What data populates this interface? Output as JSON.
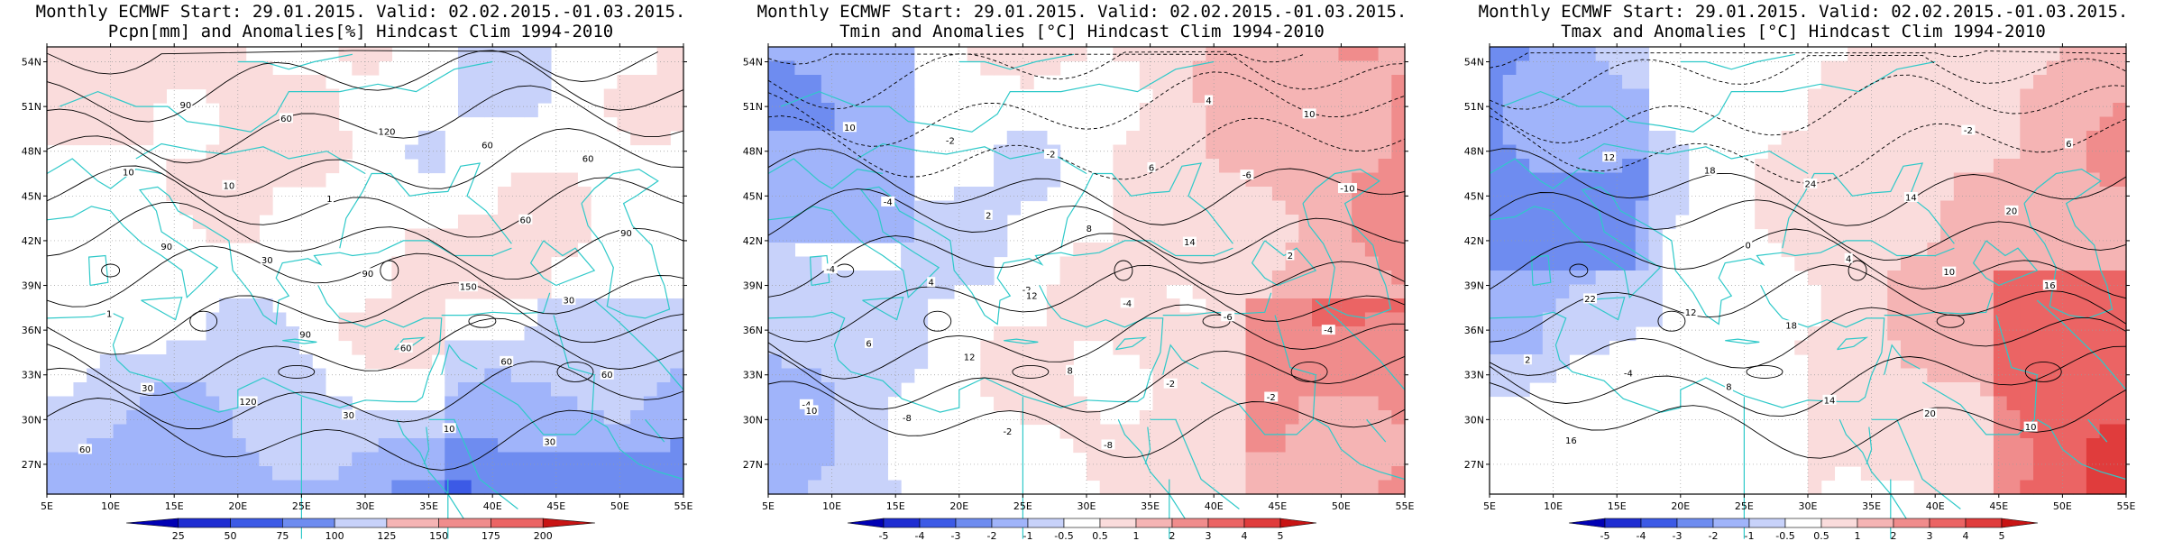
{
  "colors": {
    "coast": "#2fc9c9",
    "ramp": [
      "#0000b4",
      "#1e2dd2",
      "#3c5ae6",
      "#6e8cf0",
      "#a0b4fa",
      "#c8d2fa",
      "#ffffff",
      "#fadcdc",
      "#f5b4b4",
      "#f08c8c",
      "#eb6464",
      "#e03c3c",
      "#c81414"
    ]
  },
  "panels": [
    {
      "id": "pcpn",
      "title1": "Monthly ECMWF Start: 29.01.2015. Valid: 02.02.2015.-01.03.2015.",
      "title2": "Pcpn[mm] and Anomalies[%] Hindcast Clim 1994-2010",
      "lat_labels": [
        "54N",
        "51N",
        "48N",
        "45N",
        "42N",
        "39N",
        "36N",
        "33N",
        "30N",
        "27N"
      ],
      "lon_labels": [
        "5E",
        "10E",
        "15E",
        "20E",
        "25E",
        "30E",
        "35E",
        "40E",
        "45E",
        "50E",
        "55E"
      ],
      "colorbar_labels": [
        "25",
        "50",
        "75",
        "100",
        "125",
        "150",
        "175",
        "200"
      ],
      "contour_labels": [
        "60",
        "90",
        "60",
        "90",
        "60",
        "90",
        "60",
        "60",
        "90",
        "120",
        "60",
        "30",
        "60",
        "30",
        "90",
        "60",
        "120",
        "150",
        "10",
        "30",
        "30",
        "10",
        "10",
        "1",
        "1",
        "30"
      ]
    },
    {
      "id": "tmin",
      "title1": "Monthly ECMWF Start: 29.01.2015. Valid: 02.02.2015.-01.03.2015.",
      "title2": "Tmin and Anomalies [°C] Hindcast Clim 1994-2010",
      "lat_labels": [
        "54N",
        "51N",
        "48N",
        "45N",
        "42N",
        "39N",
        "36N",
        "33N",
        "30N",
        "27N"
      ],
      "lon_labels": [
        "5E",
        "10E",
        "15E",
        "20E",
        "25E",
        "30E",
        "35E",
        "40E",
        "45E",
        "50E",
        "55E"
      ],
      "colorbar_labels": [
        "-5",
        "-4",
        "-3",
        "-2",
        "-1",
        "-0.5",
        "0.5",
        "1",
        "2",
        "3",
        "4",
        "5"
      ],
      "contour_labels": [
        "-4",
        "-2",
        "-6",
        "-8",
        "-4",
        "-10",
        "-2",
        "-6",
        "-4",
        "-8",
        "-4",
        "2",
        "4",
        "6",
        "8",
        "10",
        "12",
        "14",
        "10",
        "8",
        "2",
        "-2",
        "-2",
        "-4",
        "-2",
        "-2",
        "4",
        "6",
        "10",
        "12"
      ]
    },
    {
      "id": "tmax",
      "title1": "Monthly ECMWF Start: 29.01.2015. Valid: 02.02.2015.-01.03.2015.",
      "title2": "Tmax and Anomalies [°C] Hindcast Clim 1994-2010",
      "lat_labels": [
        "54N",
        "51N",
        "48N",
        "45N",
        "42N",
        "39N",
        "36N",
        "33N",
        "30N",
        "27N"
      ],
      "lon_labels": [
        "5E",
        "10E",
        "15E",
        "20E",
        "25E",
        "30E",
        "35E",
        "40E",
        "45E",
        "50E",
        "55E"
      ],
      "colorbar_labels": [
        "-5",
        "-4",
        "-3",
        "-2",
        "-1",
        "-0.5",
        "0.5",
        "1",
        "2",
        "3",
        "4",
        "5"
      ],
      "contour_labels": [
        "2",
        "0",
        "-2",
        "-4",
        "4",
        "6",
        "8",
        "10",
        "12",
        "14",
        "16",
        "18",
        "20",
        "22",
        "24",
        "10",
        "12",
        "14",
        "16",
        "18",
        "20"
      ]
    }
  ]
}
